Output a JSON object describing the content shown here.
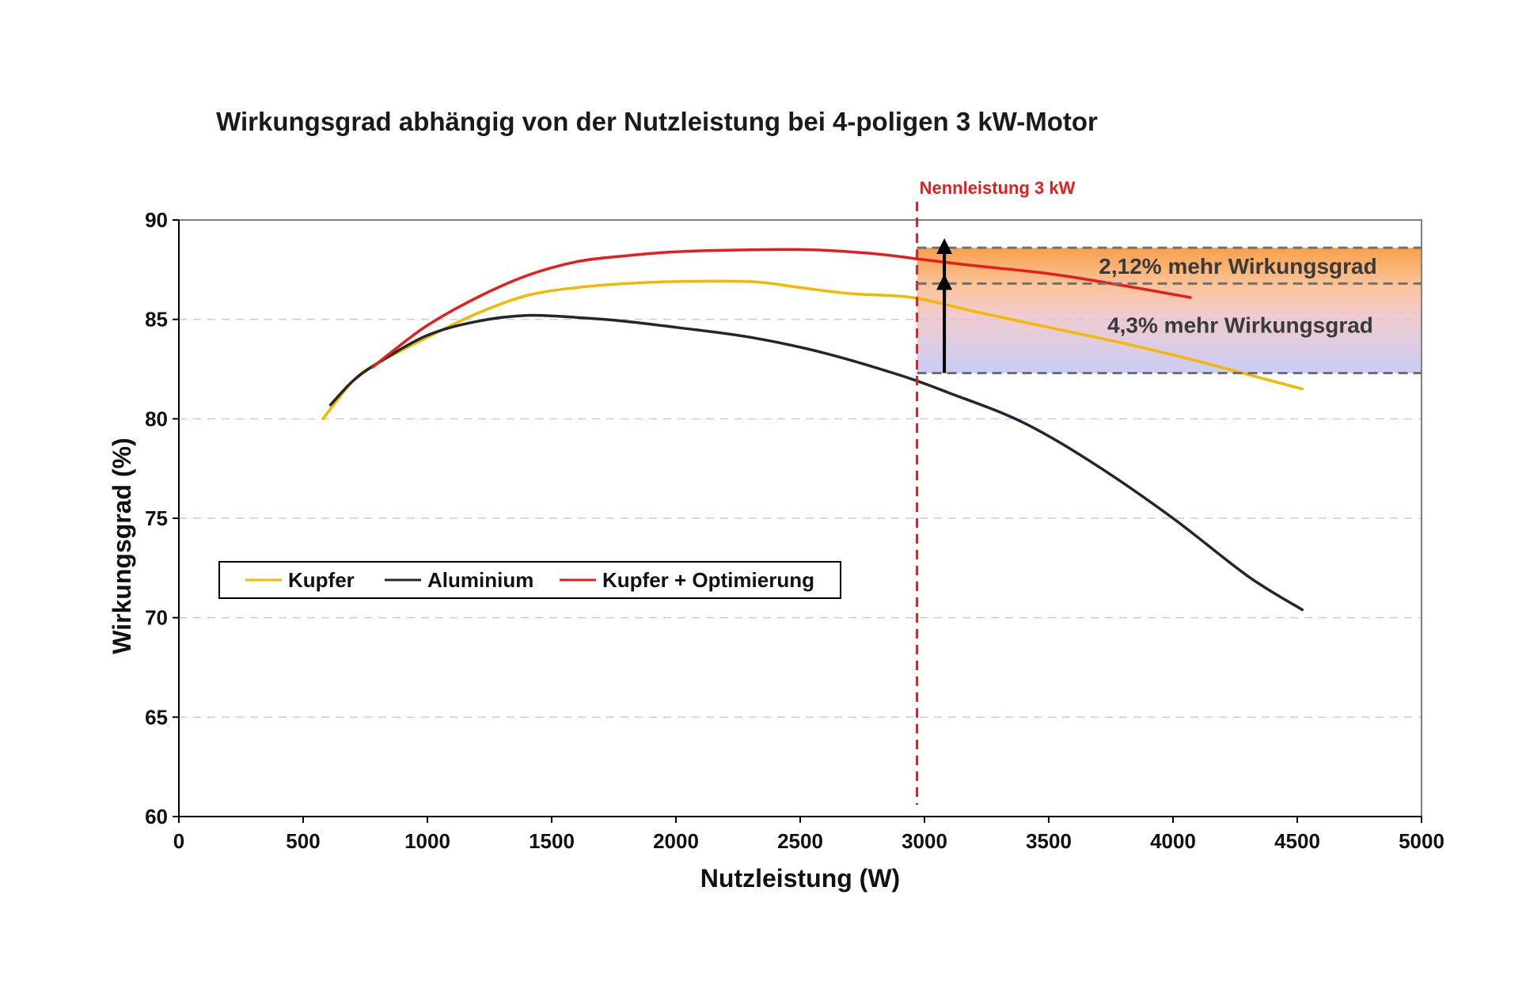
{
  "chart_data": {
    "type": "line",
    "title": "Wirkungsgrad  abhängig von der Nutzleistung bei 4-poligen 3 kW-Motor",
    "xlabel": "Nutzleistung (W)",
    "ylabel": "Wirkungsgrad (%)",
    "xlim": [
      0,
      5000
    ],
    "ylim": [
      60,
      90
    ],
    "x_ticks": [
      0,
      500,
      1000,
      1500,
      2000,
      2500,
      3000,
      3500,
      4000,
      4500,
      5000
    ],
    "y_ticks": [
      60,
      65,
      70,
      75,
      80,
      85,
      90
    ],
    "grid": "horizontal dashed",
    "legend_position": "left-middle",
    "series": [
      {
        "name": "Kupfer",
        "color": "#f5b800",
        "x": [
          580,
          700,
          800,
          1000,
          1200,
          1400,
          1600,
          1800,
          2000,
          2300,
          2500,
          2700,
          2950,
          3200,
          3500,
          3800,
          4100,
          4400,
          4520
        ],
        "y": [
          80.0,
          81.9,
          82.8,
          84.1,
          85.3,
          86.2,
          86.6,
          86.8,
          86.9,
          86.9,
          86.6,
          86.3,
          86.1,
          85.4,
          84.6,
          83.8,
          82.9,
          81.9,
          81.5
        ]
      },
      {
        "name": "Aluminium",
        "color": "#262626",
        "x": [
          610,
          700,
          800,
          1000,
          1200,
          1400,
          1600,
          1800,
          2000,
          2300,
          2600,
          2900,
          3100,
          3400,
          3700,
          4000,
          4300,
          4520
        ],
        "y": [
          80.7,
          81.9,
          82.8,
          84.2,
          84.9,
          85.2,
          85.1,
          84.9,
          84.6,
          84.1,
          83.3,
          82.2,
          81.3,
          79.8,
          77.6,
          75.0,
          72.1,
          70.4
        ]
      },
      {
        "name": "Kupfer + Optimierung",
        "color": "#e81c1c",
        "x": [
          780,
          850,
          1000,
          1200,
          1400,
          1600,
          1800,
          2000,
          2300,
          2550,
          2800,
          3000,
          3200,
          3500,
          3800,
          4070
        ],
        "y": [
          82.6,
          83.3,
          84.7,
          86.1,
          87.2,
          87.9,
          88.2,
          88.4,
          88.5,
          88.5,
          88.3,
          88.0,
          87.7,
          87.3,
          86.7,
          86.1
        ]
      }
    ],
    "annotations": {
      "nennleistung": {
        "label": "Nennleistung 3 kW",
        "x": 2970,
        "color": "#e81c1c"
      },
      "band_upper": {
        "label": "2,12% mehr Wirkungsgrad",
        "from": 86.8,
        "to": 88.6
      },
      "band_lower": {
        "label": "4,3% mehr  Wirkungsgrad",
        "from": 82.3,
        "to": 86.8
      },
      "arrow_x": 3080
    }
  }
}
